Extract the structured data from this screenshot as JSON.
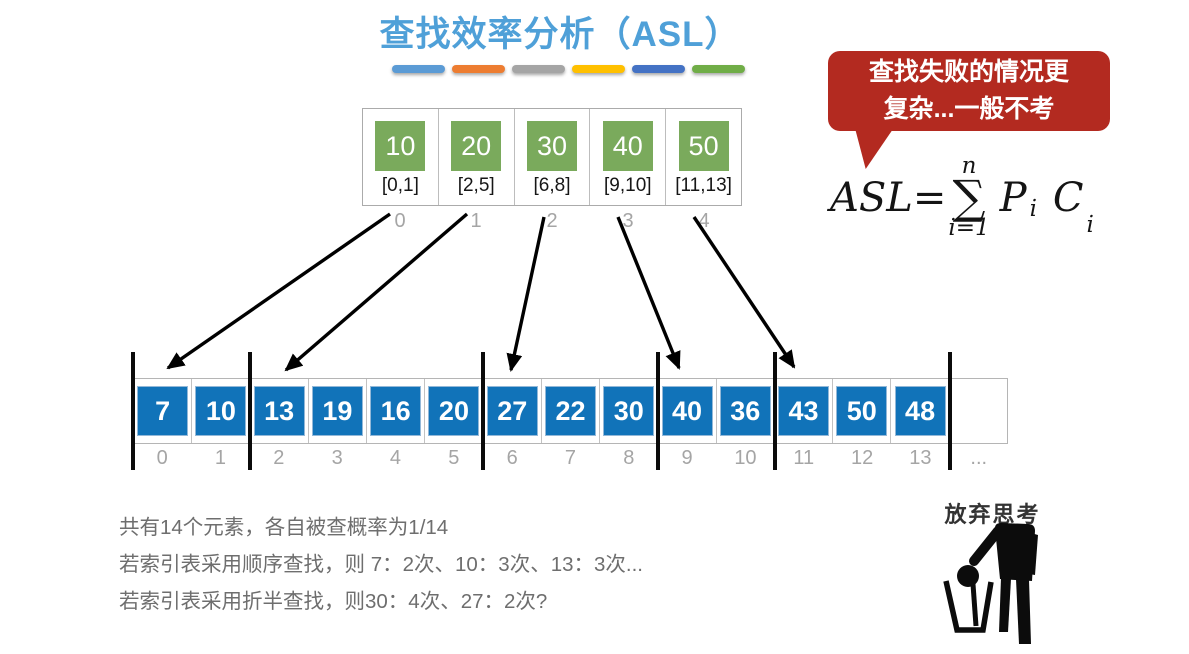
{
  "slide": {
    "title": "查找效率分析（ASL）",
    "title_color": "#4FA0D8"
  },
  "divider_dashes": [
    "#5B9BD5",
    "#ED7D31",
    "#A5A5A5",
    "#FFC000",
    "#4472C4",
    "#70AD47"
  ],
  "index_table": {
    "box_color": "#7AAA5C",
    "cells": [
      {
        "value": "10",
        "range": "[0,1]",
        "index": "0"
      },
      {
        "value": "20",
        "range": "[2,5]",
        "index": "1"
      },
      {
        "value": "30",
        "range": "[6,8]",
        "index": "2"
      },
      {
        "value": "40",
        "range": "[9,10]",
        "index": "3"
      },
      {
        "value": "50",
        "range": "[11,13]",
        "index": "4"
      }
    ]
  },
  "callout": {
    "bg_color": "#B32A20",
    "lines": [
      "查找失败的情况更",
      "复杂...一般不考"
    ]
  },
  "formula": {
    "lhs": "ASL=",
    "sum_upper": "n",
    "sum_symbol": "∑",
    "sum_lower": "i=1",
    "term1": "P",
    "term1_sub": "i",
    "term2": "C",
    "term2_sub": "i"
  },
  "main_array": {
    "box_color": "#1173B9",
    "group_boundaries": [
      0,
      2,
      6,
      9,
      11,
      14
    ],
    "cells": [
      {
        "value": "7",
        "index": "0"
      },
      {
        "value": "10",
        "index": "1"
      },
      {
        "value": "13",
        "index": "2"
      },
      {
        "value": "19",
        "index": "3"
      },
      {
        "value": "16",
        "index": "4"
      },
      {
        "value": "20",
        "index": "5"
      },
      {
        "value": "27",
        "index": "6"
      },
      {
        "value": "22",
        "index": "7"
      },
      {
        "value": "30",
        "index": "8"
      },
      {
        "value": "40",
        "index": "9"
      },
      {
        "value": "36",
        "index": "10"
      },
      {
        "value": "43",
        "index": "11"
      },
      {
        "value": "50",
        "index": "12"
      },
      {
        "value": "48",
        "index": "13"
      },
      {
        "value": "",
        "index": "..."
      }
    ]
  },
  "notes": {
    "lines": [
      "共有14个元素，各自被查概率为1/14",
      "若索引表采用顺序查找，则 7：2次、10：3次、13：3次...",
      "若索引表采用折半查找，则30：4次、27：2次?"
    ]
  },
  "meme": {
    "caption": "放弃思考"
  }
}
